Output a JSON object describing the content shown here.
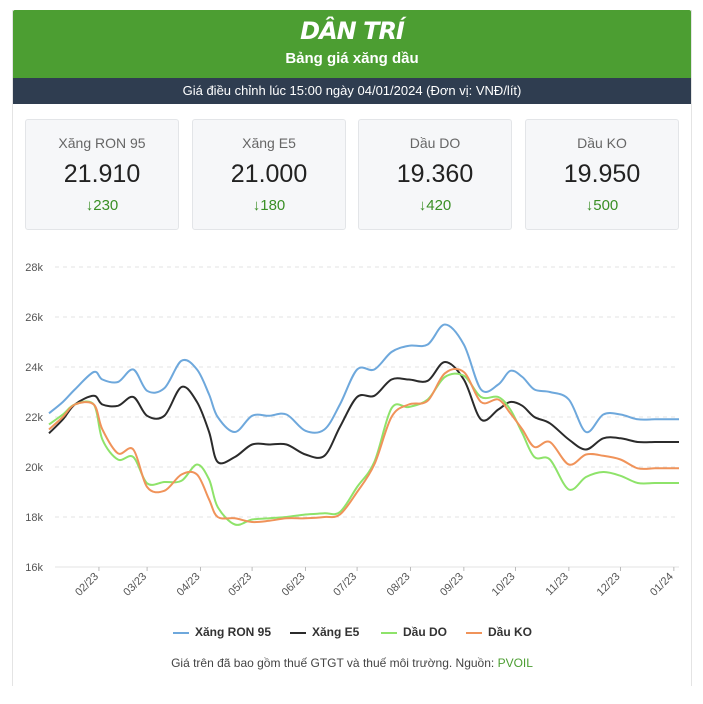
{
  "header": {
    "logo": "DÂN TRÍ",
    "title": "Bảng giá xăng dầu"
  },
  "infobar": {
    "text": "Giá điều chỉnh lúc 15:00 ngày 04/01/2024 (Đơn vị: VNĐ/lít)"
  },
  "tiles": [
    {
      "name": "Xăng RON 95",
      "price": "21.910",
      "change": "230",
      "direction": "down"
    },
    {
      "name": "Xăng E5",
      "price": "21.000",
      "change": "180",
      "direction": "down"
    },
    {
      "name": "Dầu DO",
      "price": "19.360",
      "change": "420",
      "direction": "down"
    },
    {
      "name": "Dầu KO",
      "price": "19.950",
      "change": "500",
      "direction": "down"
    }
  ],
  "colors": {
    "header_bg": "#4c9e32",
    "infobar_bg": "#2f3d50",
    "down": "#3a8f25",
    "ron95": "#6ea8dc",
    "e5": "#2b2b2b",
    "do": "#8ee36a",
    "ko": "#f0935a"
  },
  "chart_data": {
    "type": "line",
    "y_ticks": [
      "28k",
      "26k",
      "24k",
      "22k",
      "20k",
      "18k",
      "16k"
    ],
    "ylim": [
      16000,
      28000
    ],
    "grid": true,
    "legend_placement": "bottom",
    "x_ticks": [
      "02/23",
      "03/23",
      "04/23",
      "05/23",
      "06/23",
      "07/23",
      "08/23",
      "09/23",
      "10/23",
      "11/23",
      "12/23",
      "01/24"
    ],
    "x": [
      "2023-01-03",
      "2023-01-11",
      "2023-01-18",
      "2023-01-29",
      "2023-02-03",
      "2023-02-12",
      "2023-02-21",
      "2023-03-01",
      "2023-03-11",
      "2023-03-21",
      "2023-03-30",
      "2023-04-06",
      "2023-04-11",
      "2023-04-21",
      "2023-05-01",
      "2023-05-11",
      "2023-05-21",
      "2023-06-01",
      "2023-06-12",
      "2023-06-21",
      "2023-07-01",
      "2023-07-11",
      "2023-07-21",
      "2023-07-31",
      "2023-08-11",
      "2023-08-21",
      "2023-09-01",
      "2023-09-11",
      "2023-09-21",
      "2023-09-28",
      "2023-10-05",
      "2023-10-12",
      "2023-10-21",
      "2023-11-01",
      "2023-11-11",
      "2023-11-21",
      "2023-12-01",
      "2023-12-11",
      "2023-12-21",
      "2023-12-28",
      "2024-01-04"
    ],
    "series": [
      {
        "name": "Xăng RON 95",
        "color": "#6ea8dc",
        "values": [
          22150,
          22600,
          23100,
          23800,
          23500,
          23400,
          23900,
          23050,
          23150,
          24250,
          23900,
          22900,
          22000,
          21400,
          22050,
          22050,
          22100,
          21450,
          21500,
          22500,
          23900,
          23900,
          24600,
          24850,
          24900,
          25700,
          24900,
          23100,
          23300,
          23850,
          23600,
          23100,
          23000,
          22700,
          21400,
          22100,
          22100,
          21910,
          21910,
          21910,
          21910
        ]
      },
      {
        "name": "Xăng E5",
        "color": "#2b2b2b",
        "values": [
          21350,
          21900,
          22500,
          22850,
          22500,
          22450,
          22800,
          22050,
          22050,
          23200,
          22600,
          21400,
          20200,
          20400,
          20900,
          20900,
          20900,
          20500,
          20450,
          21600,
          22800,
          22850,
          23500,
          23500,
          23450,
          24200,
          23500,
          21900,
          22300,
          22600,
          22450,
          22000,
          21750,
          21100,
          20700,
          21150,
          21150,
          21000,
          21000,
          21000,
          21000
        ]
      },
      {
        "name": "Dầu DO",
        "color": "#8ee36a",
        "values": [
          21700,
          22100,
          22500,
          22500,
          21100,
          20300,
          20400,
          19350,
          19400,
          19450,
          20100,
          19500,
          18400,
          17700,
          17900,
          17950,
          18000,
          18100,
          18150,
          18200,
          19200,
          20200,
          22350,
          22400,
          22700,
          23600,
          23650,
          22800,
          22800,
          22300,
          21350,
          20400,
          20300,
          19100,
          19600,
          19800,
          19650,
          19360,
          19360,
          19360,
          19360
        ]
      },
      {
        "name": "Dầu KO",
        "color": "#f0935a",
        "values": [
          21500,
          22000,
          22500,
          22500,
          21500,
          20550,
          20700,
          19200,
          19050,
          19700,
          19700,
          18700,
          18000,
          17950,
          17800,
          17850,
          17950,
          17950,
          18000,
          18100,
          19000,
          20100,
          22000,
          22500,
          22650,
          23750,
          23800,
          22600,
          22700,
          22150,
          21500,
          20800,
          21000,
          20100,
          20500,
          20450,
          20300,
          19950,
          19950,
          19950,
          19950
        ]
      }
    ]
  },
  "legend": [
    {
      "label": "Xăng RON 95",
      "color": "#6ea8dc"
    },
    {
      "label": "Xăng E5",
      "color": "#2b2b2b"
    },
    {
      "label": "Dầu DO",
      "color": "#8ee36a"
    },
    {
      "label": "Dầu KO",
      "color": "#f0935a"
    }
  ],
  "footnote": {
    "text": "Giá trên đã bao gồm thuế GTGT và thuế môi trường. Nguồn: ",
    "source": "PVOIL"
  }
}
